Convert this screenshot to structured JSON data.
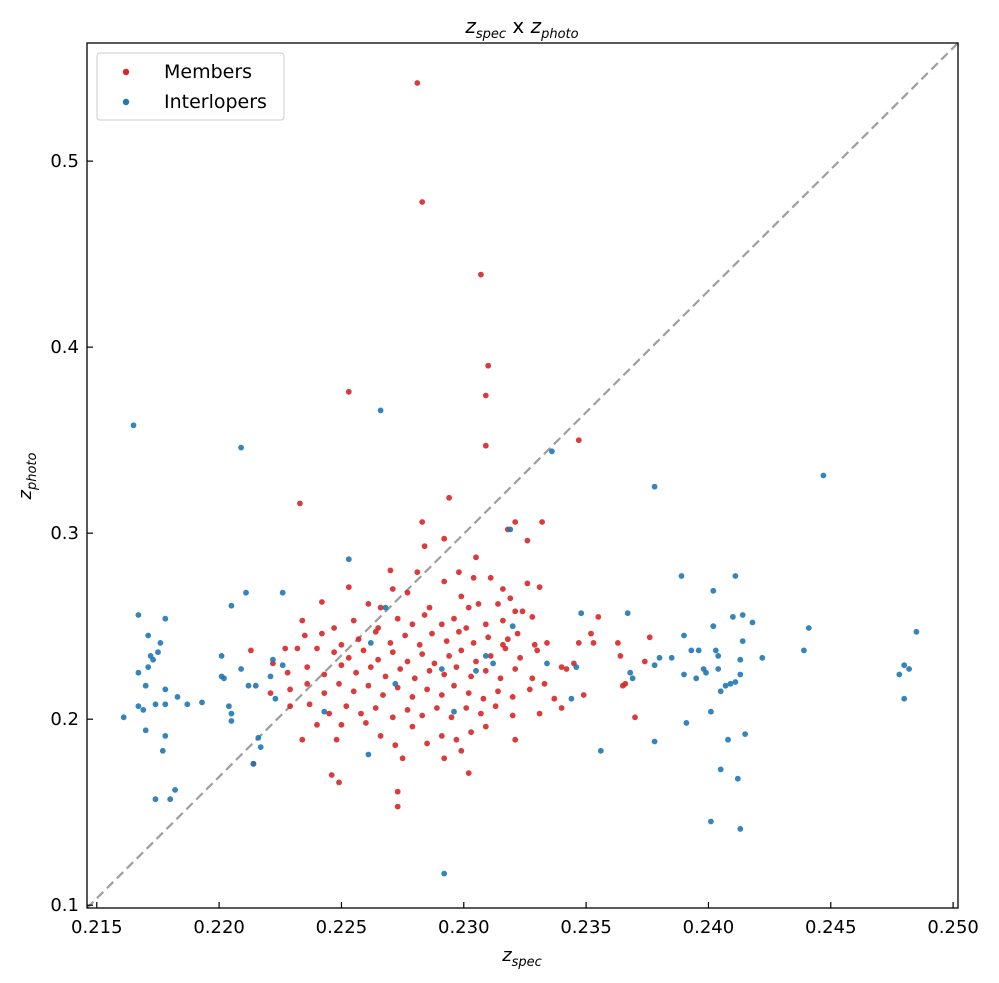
{
  "chart_data": {
    "type": "scatter",
    "title": {
      "base1": "z",
      "sub1": "spec",
      "mid": " x ",
      "base2": "z",
      "sub2": "photo"
    },
    "xlabel": {
      "base": "z",
      "sub": "spec"
    },
    "ylabel": {
      "base": "z",
      "sub": "photo"
    },
    "xlim": [
      0.2146,
      0.2502
    ],
    "ylim": [
      0.0985,
      0.5635
    ],
    "xticks": [
      "0.215",
      "0.220",
      "0.225",
      "0.230",
      "0.235",
      "0.240",
      "0.245",
      "0.250"
    ],
    "yticks": [
      "0.1",
      "0.2",
      "0.3",
      "0.4",
      "0.5"
    ],
    "grid": false,
    "legend": {
      "position": "top-left"
    },
    "reference_line": {
      "style": "dashed",
      "color": "#9e9e9e",
      "from": [
        0.2146,
        0.0985
      ],
      "to": [
        0.2502,
        0.5635
      ]
    },
    "series": [
      {
        "name": "Members",
        "color": "#d62728",
        "points": [
          [
            0.2281,
            0.542
          ],
          [
            0.2283,
            0.478
          ],
          [
            0.2307,
            0.439
          ],
          [
            0.2253,
            0.376
          ],
          [
            0.231,
            0.39
          ],
          [
            0.2309,
            0.374
          ],
          [
            0.2309,
            0.347
          ],
          [
            0.2347,
            0.35
          ],
          [
            0.2233,
            0.316
          ],
          [
            0.2294,
            0.319
          ],
          [
            0.2283,
            0.306
          ],
          [
            0.2321,
            0.306
          ],
          [
            0.2332,
            0.306
          ],
          [
            0.2284,
            0.293
          ],
          [
            0.2292,
            0.297
          ],
          [
            0.2305,
            0.287
          ],
          [
            0.2326,
            0.296
          ],
          [
            0.2318,
            0.302
          ],
          [
            0.2253,
            0.271
          ],
          [
            0.227,
            0.28
          ],
          [
            0.2281,
            0.279
          ],
          [
            0.2271,
            0.27
          ],
          [
            0.2277,
            0.268
          ],
          [
            0.2292,
            0.274
          ],
          [
            0.2298,
            0.279
          ],
          [
            0.2304,
            0.276
          ],
          [
            0.2311,
            0.276
          ],
          [
            0.2316,
            0.27
          ],
          [
            0.2326,
            0.273
          ],
          [
            0.2331,
            0.271
          ],
          [
            0.2242,
            0.263
          ],
          [
            0.2261,
            0.262
          ],
          [
            0.2266,
            0.26
          ],
          [
            0.2286,
            0.26
          ],
          [
            0.2299,
            0.266
          ],
          [
            0.2302,
            0.26
          ],
          [
            0.2306,
            0.262
          ],
          [
            0.2314,
            0.262
          ],
          [
            0.2319,
            0.265
          ],
          [
            0.2234,
            0.253
          ],
          [
            0.2247,
            0.249
          ],
          [
            0.2255,
            0.253
          ],
          [
            0.2265,
            0.249
          ],
          [
            0.2273,
            0.254
          ],
          [
            0.2279,
            0.251
          ],
          [
            0.2284,
            0.256
          ],
          [
            0.2291,
            0.251
          ],
          [
            0.2296,
            0.254
          ],
          [
            0.2301,
            0.249
          ],
          [
            0.2309,
            0.251
          ],
          [
            0.2316,
            0.253
          ],
          [
            0.2321,
            0.258
          ],
          [
            0.2328,
            0.255
          ],
          [
            0.2235,
            0.245
          ],
          [
            0.2242,
            0.246
          ],
          [
            0.225,
            0.24
          ],
          [
            0.2257,
            0.243
          ],
          [
            0.2264,
            0.247
          ],
          [
            0.227,
            0.241
          ],
          [
            0.2276,
            0.245
          ],
          [
            0.2282,
            0.24
          ],
          [
            0.2287,
            0.246
          ],
          [
            0.2293,
            0.242
          ],
          [
            0.2298,
            0.247
          ],
          [
            0.2304,
            0.241
          ],
          [
            0.231,
            0.244
          ],
          [
            0.2316,
            0.24
          ],
          [
            0.2322,
            0.246
          ],
          [
            0.2329,
            0.24
          ],
          [
            0.2334,
            0.241
          ],
          [
            0.2347,
            0.241
          ],
          [
            0.2353,
            0.241
          ],
          [
            0.2227,
            0.238
          ],
          [
            0.2232,
            0.238
          ],
          [
            0.224,
            0.238
          ],
          [
            0.2247,
            0.236
          ],
          [
            0.2253,
            0.233
          ],
          [
            0.2259,
            0.237
          ],
          [
            0.2265,
            0.232
          ],
          [
            0.2271,
            0.236
          ],
          [
            0.2277,
            0.231
          ],
          [
            0.2283,
            0.235
          ],
          [
            0.2288,
            0.23
          ],
          [
            0.2294,
            0.234
          ],
          [
            0.2299,
            0.237
          ],
          [
            0.2305,
            0.231
          ],
          [
            0.2311,
            0.234
          ],
          [
            0.2317,
            0.238
          ],
          [
            0.2323,
            0.233
          ],
          [
            0.233,
            0.237
          ],
          [
            0.2213,
            0.237
          ],
          [
            0.2222,
            0.23
          ],
          [
            0.2228,
            0.225
          ],
          [
            0.2236,
            0.228
          ],
          [
            0.2243,
            0.224
          ],
          [
            0.225,
            0.229
          ],
          [
            0.2256,
            0.225
          ],
          [
            0.2262,
            0.228
          ],
          [
            0.2268,
            0.223
          ],
          [
            0.2274,
            0.227
          ],
          [
            0.228,
            0.222
          ],
          [
            0.2286,
            0.226
          ],
          [
            0.2292,
            0.224
          ],
          [
            0.2297,
            0.228
          ],
          [
            0.2303,
            0.223
          ],
          [
            0.2309,
            0.226
          ],
          [
            0.2315,
            0.222
          ],
          [
            0.2321,
            0.227
          ],
          [
            0.2328,
            0.222
          ],
          [
            0.2333,
            0.219
          ],
          [
            0.2342,
            0.227
          ],
          [
            0.2221,
            0.214
          ],
          [
            0.2229,
            0.216
          ],
          [
            0.2236,
            0.219
          ],
          [
            0.2243,
            0.214
          ],
          [
            0.2249,
            0.219
          ],
          [
            0.2255,
            0.215
          ],
          [
            0.2261,
            0.218
          ],
          [
            0.2267,
            0.213
          ],
          [
            0.2273,
            0.217
          ],
          [
            0.2279,
            0.212
          ],
          [
            0.2285,
            0.216
          ],
          [
            0.2291,
            0.213
          ],
          [
            0.2296,
            0.218
          ],
          [
            0.2302,
            0.214
          ],
          [
            0.2308,
            0.211
          ],
          [
            0.2314,
            0.215
          ],
          [
            0.232,
            0.212
          ],
          [
            0.2327,
            0.216
          ],
          [
            0.2337,
            0.211
          ],
          [
            0.2349,
            0.213
          ],
          [
            0.2229,
            0.207
          ],
          [
            0.2237,
            0.208
          ],
          [
            0.2245,
            0.203
          ],
          [
            0.2252,
            0.207
          ],
          [
            0.2258,
            0.203
          ],
          [
            0.2264,
            0.206
          ],
          [
            0.2271,
            0.201
          ],
          [
            0.2277,
            0.205
          ],
          [
            0.2283,
            0.202
          ],
          [
            0.2289,
            0.206
          ],
          [
            0.2295,
            0.201
          ],
          [
            0.2301,
            0.206
          ],
          [
            0.2307,
            0.203
          ],
          [
            0.2313,
            0.207
          ],
          [
            0.232,
            0.202
          ],
          [
            0.2331,
            0.203
          ],
          [
            0.234,
            0.206
          ],
          [
            0.2234,
            0.189
          ],
          [
            0.224,
            0.197
          ],
          [
            0.2248,
            0.189
          ],
          [
            0.225,
            0.197
          ],
          [
            0.226,
            0.198
          ],
          [
            0.2266,
            0.191
          ],
          [
            0.2272,
            0.186
          ],
          [
            0.2279,
            0.196
          ],
          [
            0.2285,
            0.187
          ],
          [
            0.2291,
            0.191
          ],
          [
            0.2297,
            0.189
          ],
          [
            0.2303,
            0.193
          ],
          [
            0.2309,
            0.196
          ],
          [
            0.2321,
            0.189
          ],
          [
            0.2214,
            0.176
          ],
          [
            0.2246,
            0.17
          ],
          [
            0.2249,
            0.166
          ],
          [
            0.2275,
            0.179
          ],
          [
            0.2292,
            0.179
          ],
          [
            0.2299,
            0.183
          ],
          [
            0.2302,
            0.171
          ],
          [
            0.2273,
            0.161
          ],
          [
            0.2273,
            0.153
          ],
          [
            0.2363,
            0.241
          ],
          [
            0.2366,
            0.219
          ],
          [
            0.2364,
            0.234
          ],
          [
            0.2376,
            0.244
          ],
          [
            0.2352,
            0.246
          ],
          [
            0.2355,
            0.255
          ],
          [
            0.2365,
            0.218
          ],
          [
            0.237,
            0.201
          ],
          [
            0.2374,
            0.231
          ],
          [
            0.234,
            0.228
          ],
          [
            0.2345,
            0.23
          ],
          [
            0.2324,
            0.258
          ],
          [
            0.2318,
            0.243
          ]
        ]
      },
      {
        "name": "Interlopers",
        "color": "#1f77b4",
        "points": [
          [
            0.2165,
            0.358
          ],
          [
            0.2209,
            0.346
          ],
          [
            0.2266,
            0.366
          ],
          [
            0.2336,
            0.344
          ],
          [
            0.2378,
            0.325
          ],
          [
            0.2447,
            0.331
          ],
          [
            0.2253,
            0.286
          ],
          [
            0.2319,
            0.302
          ],
          [
            0.2167,
            0.256
          ],
          [
            0.2178,
            0.254
          ],
          [
            0.2205,
            0.261
          ],
          [
            0.2211,
            0.268
          ],
          [
            0.2226,
            0.268
          ],
          [
            0.2171,
            0.245
          ],
          [
            0.2176,
            0.241
          ],
          [
            0.2175,
            0.236
          ],
          [
            0.2173,
            0.232
          ],
          [
            0.2171,
            0.228
          ],
          [
            0.2172,
            0.234
          ],
          [
            0.2167,
            0.225
          ],
          [
            0.217,
            0.218
          ],
          [
            0.2178,
            0.216
          ],
          [
            0.2183,
            0.212
          ],
          [
            0.2187,
            0.208
          ],
          [
            0.2193,
            0.209
          ],
          [
            0.2201,
            0.234
          ],
          [
            0.2201,
            0.223
          ],
          [
            0.2209,
            0.227
          ],
          [
            0.2212,
            0.218
          ],
          [
            0.2215,
            0.218
          ],
          [
            0.2221,
            0.223
          ],
          [
            0.2222,
            0.232
          ],
          [
            0.2223,
            0.211
          ],
          [
            0.2167,
            0.207
          ],
          [
            0.2169,
            0.205
          ],
          [
            0.2161,
            0.201
          ],
          [
            0.217,
            0.194
          ],
          [
            0.2178,
            0.191
          ],
          [
            0.2177,
            0.183
          ],
          [
            0.2174,
            0.208
          ],
          [
            0.2178,
            0.208
          ],
          [
            0.2204,
            0.207
          ],
          [
            0.2205,
            0.203
          ],
          [
            0.2205,
            0.199
          ],
          [
            0.2216,
            0.19
          ],
          [
            0.2217,
            0.185
          ],
          [
            0.2214,
            0.176
          ],
          [
            0.2261,
            0.181
          ],
          [
            0.2182,
            0.162
          ],
          [
            0.218,
            0.157
          ],
          [
            0.2174,
            0.157
          ],
          [
            0.2243,
            0.204
          ],
          [
            0.2262,
            0.241
          ],
          [
            0.2268,
            0.26
          ],
          [
            0.2272,
            0.219
          ],
          [
            0.2291,
            0.227
          ],
          [
            0.2296,
            0.204
          ],
          [
            0.2305,
            0.226
          ],
          [
            0.2309,
            0.234
          ],
          [
            0.2312,
            0.23
          ],
          [
            0.232,
            0.25
          ],
          [
            0.2334,
            0.23
          ],
          [
            0.2344,
            0.211
          ],
          [
            0.2346,
            0.228
          ],
          [
            0.2348,
            0.257
          ],
          [
            0.2356,
            0.183
          ],
          [
            0.2367,
            0.257
          ],
          [
            0.2368,
            0.225
          ],
          [
            0.2369,
            0.222
          ],
          [
            0.2378,
            0.229
          ],
          [
            0.238,
            0.233
          ],
          [
            0.2378,
            0.188
          ],
          [
            0.2385,
            0.233
          ],
          [
            0.239,
            0.245
          ],
          [
            0.239,
            0.224
          ],
          [
            0.2389,
            0.277
          ],
          [
            0.2391,
            0.198
          ],
          [
            0.2393,
            0.237
          ],
          [
            0.2395,
            0.222
          ],
          [
            0.2396,
            0.237
          ],
          [
            0.2398,
            0.227
          ],
          [
            0.2399,
            0.225
          ],
          [
            0.2402,
            0.269
          ],
          [
            0.2403,
            0.237
          ],
          [
            0.2402,
            0.25
          ],
          [
            0.2404,
            0.227
          ],
          [
            0.2404,
            0.234
          ],
          [
            0.2405,
            0.215
          ],
          [
            0.2407,
            0.218
          ],
          [
            0.2401,
            0.204
          ],
          [
            0.2405,
            0.173
          ],
          [
            0.2408,
            0.189
          ],
          [
            0.2409,
            0.219
          ],
          [
            0.2411,
            0.277
          ],
          [
            0.241,
            0.255
          ],
          [
            0.2411,
            0.22
          ],
          [
            0.2412,
            0.168
          ],
          [
            0.2413,
            0.232
          ],
          [
            0.2413,
            0.141
          ],
          [
            0.2414,
            0.256
          ],
          [
            0.2414,
            0.242
          ],
          [
            0.2415,
            0.192
          ],
          [
            0.2413,
            0.224
          ],
          [
            0.2418,
            0.252
          ],
          [
            0.2401,
            0.145
          ],
          [
            0.2422,
            0.233
          ],
          [
            0.2439,
            0.237
          ],
          [
            0.2441,
            0.249
          ],
          [
            0.2478,
            0.224
          ],
          [
            0.248,
            0.229
          ],
          [
            0.248,
            0.211
          ],
          [
            0.2482,
            0.227
          ],
          [
            0.2485,
            0.247
          ],
          [
            0.2292,
            0.117
          ],
          [
            0.2202,
            0.222
          ],
          [
            0.2226,
            0.229
          ]
        ]
      }
    ]
  }
}
